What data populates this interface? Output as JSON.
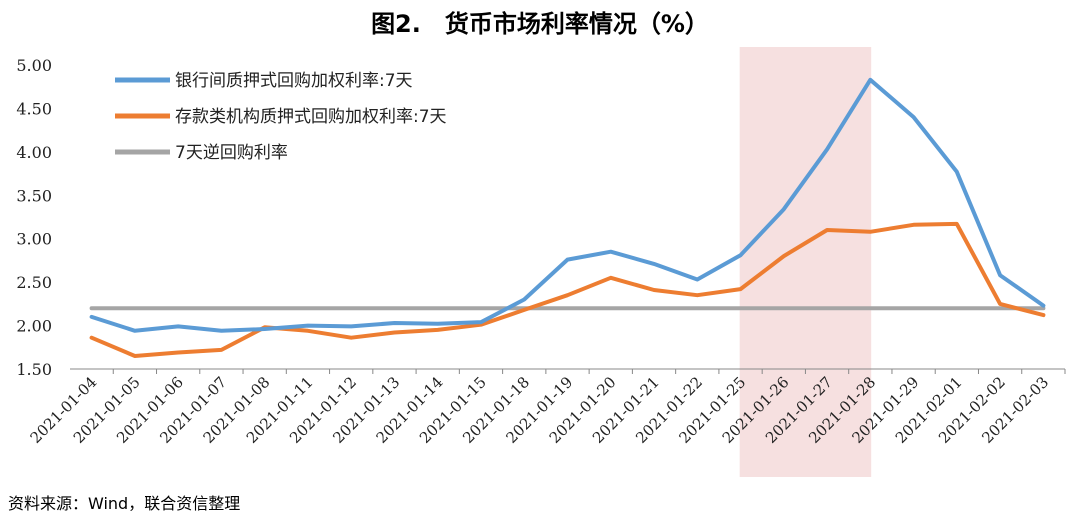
{
  "chart_data": {
    "type": "line",
    "title": "图2.　货币市场利率情况（%）",
    "categories": [
      "2021-01-04",
      "2021-01-05",
      "2021-01-06",
      "2021-01-07",
      "2021-01-08",
      "2021-01-11",
      "2021-01-12",
      "2021-01-13",
      "2021-01-14",
      "2021-01-15",
      "2021-01-18",
      "2021-01-19",
      "2021-01-20",
      "2021-01-21",
      "2021-01-22",
      "2021-01-25",
      "2021-01-26",
      "2021-01-27",
      "2021-01-28",
      "2021-01-29",
      "2021-02-01",
      "2021-02-02",
      "2021-02-03"
    ],
    "ylim": [
      1.5,
      5.0
    ],
    "yticks": [
      "1.50",
      "2.00",
      "2.50",
      "3.00",
      "3.50",
      "4.00",
      "4.50",
      "5.00"
    ],
    "highlight_range": [
      "2021-01-25",
      "2021-01-28"
    ],
    "legend_position": "top-left",
    "series": [
      {
        "name": "银行间质押式回购加权利率:7天",
        "color": "#5B9BD5",
        "values": [
          2.1,
          1.94,
          1.99,
          1.94,
          1.96,
          2.0,
          1.99,
          2.03,
          2.02,
          2.04,
          2.3,
          2.76,
          2.85,
          2.71,
          2.53,
          2.81,
          3.34,
          4.03,
          4.83,
          4.4,
          3.77,
          2.58,
          2.23
        ]
      },
      {
        "name": "存款类机构质押式回购加权利率:7天",
        "color": "#ED7D31",
        "values": [
          1.86,
          1.65,
          1.69,
          1.72,
          1.98,
          1.94,
          1.86,
          1.92,
          1.95,
          2.01,
          2.18,
          2.35,
          2.55,
          2.41,
          2.35,
          2.42,
          2.8,
          3.1,
          3.08,
          3.16,
          3.17,
          2.25,
          2.12
        ]
      },
      {
        "name": "7天逆回购利率",
        "color": "#A5A5A5",
        "values": [
          2.2,
          2.2,
          2.2,
          2.2,
          2.2,
          2.2,
          2.2,
          2.2,
          2.2,
          2.2,
          2.2,
          2.2,
          2.2,
          2.2,
          2.2,
          2.2,
          2.2,
          2.2,
          2.2,
          2.2,
          2.2,
          2.2,
          2.2
        ]
      }
    ],
    "highlight_color": "#F6E0E0"
  },
  "source_note": "资料来源：Wind，联合资信整理"
}
